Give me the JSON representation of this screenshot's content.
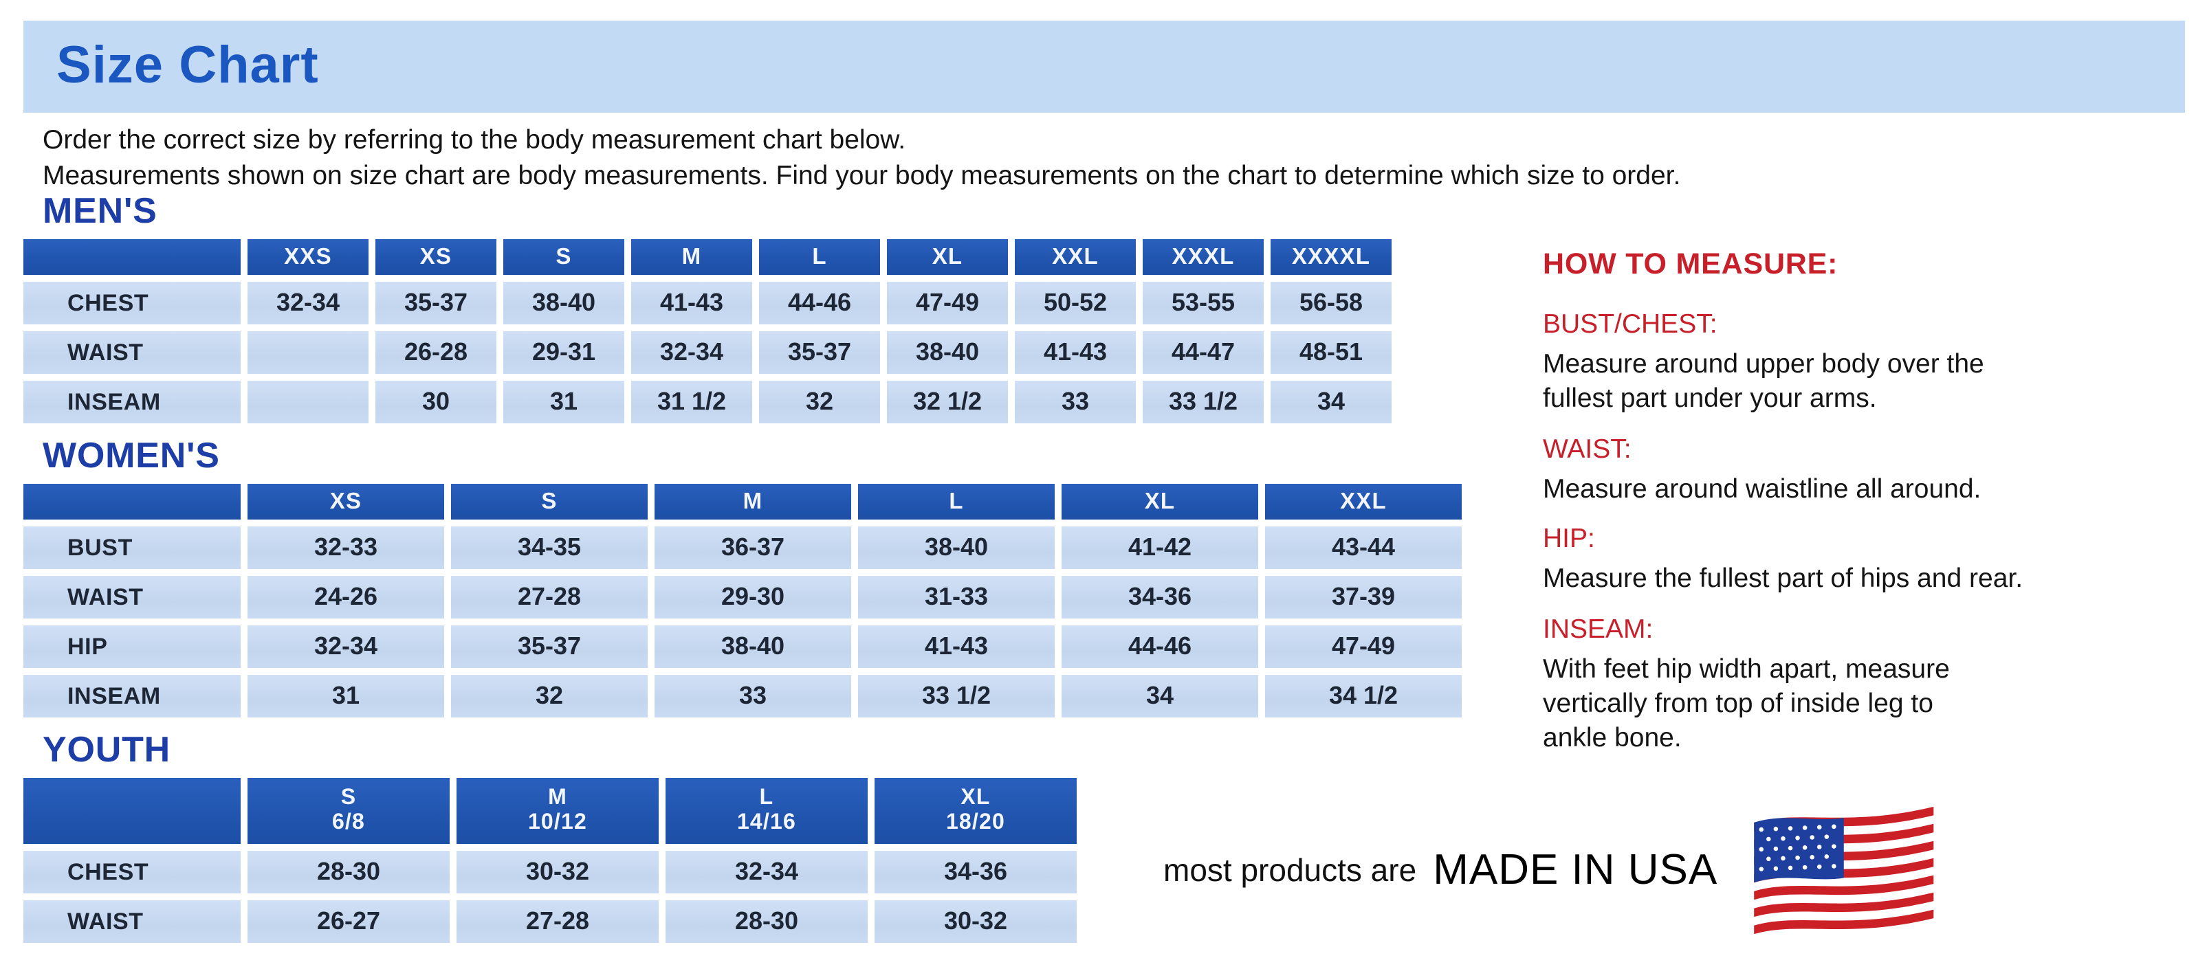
{
  "page_title": "Size Chart",
  "intro_lines": [
    "Order the correct size by referring to the body measurement chart below.",
    "Measurements shown on size chart are body measurements.  Find your body measurements on the chart to determine which size to order."
  ],
  "tables": [
    {
      "id": "mens",
      "section_label": "MEN'S",
      "columns": [
        {
          "size": "XXS"
        },
        {
          "size": "XS"
        },
        {
          "size": "S"
        },
        {
          "size": "M"
        },
        {
          "size": "L"
        },
        {
          "size": "XL"
        },
        {
          "size": "XXL"
        },
        {
          "size": "XXXL"
        },
        {
          "size": "XXXXL"
        }
      ],
      "rows": [
        {
          "label": "CHEST",
          "values": [
            "32-34",
            "35-37",
            "38-40",
            "41-43",
            "44-46",
            "47-49",
            "50-52",
            "53-55",
            "56-58"
          ]
        },
        {
          "label": "WAIST",
          "values": [
            "",
            "26-28",
            "29-31",
            "32-34",
            "35-37",
            "38-40",
            "41-43",
            "44-47",
            "48-51"
          ]
        },
        {
          "label": "INSEAM",
          "values": [
            "",
            "30",
            "31",
            "31 1/2",
            "32",
            "32 1/2",
            "33",
            "33 1/2",
            "34"
          ]
        }
      ]
    },
    {
      "id": "womens",
      "section_label": "WOMEN'S",
      "columns": [
        {
          "size": "XS"
        },
        {
          "size": "S"
        },
        {
          "size": "M"
        },
        {
          "size": "L"
        },
        {
          "size": "XL"
        },
        {
          "size": "XXL"
        }
      ],
      "rows": [
        {
          "label": "BUST",
          "values": [
            "32-33",
            "34-35",
            "36-37",
            "38-40",
            "41-42",
            "43-44"
          ]
        },
        {
          "label": "WAIST",
          "values": [
            "24-26",
            "27-28",
            "29-30",
            "31-33",
            "34-36",
            "37-39"
          ]
        },
        {
          "label": "HIP",
          "values": [
            "32-34",
            "35-37",
            "38-40",
            "41-43",
            "44-46",
            "47-49"
          ]
        },
        {
          "label": "INSEAM",
          "values": [
            "31",
            "32",
            "33",
            "33 1/2",
            "34",
            "34 1/2"
          ]
        }
      ]
    },
    {
      "id": "youth",
      "section_label": "YOUTH",
      "columns": [
        {
          "size": "S",
          "range": "6/8"
        },
        {
          "size": "M",
          "range": "10/12"
        },
        {
          "size": "L",
          "range": "14/16"
        },
        {
          "size": "XL",
          "range": "18/20"
        }
      ],
      "rows": [
        {
          "label": "CHEST",
          "values": [
            "28-30",
            "30-32",
            "32-34",
            "34-36"
          ]
        },
        {
          "label": "WAIST",
          "values": [
            "26-27",
            "27-28",
            "28-30",
            "30-32"
          ]
        }
      ]
    }
  ],
  "how_to_measure": {
    "title": "HOW TO MEASURE:",
    "items": [
      {
        "label": "BUST/CHEST:",
        "lines": [
          "Measure around upper body over the",
          "fullest part under your arms."
        ]
      },
      {
        "label": "WAIST:",
        "lines": [
          "Measure around waistline all around."
        ]
      },
      {
        "label": "HIP:",
        "lines": [
          "Measure the fullest part of hips and rear."
        ]
      },
      {
        "label": "INSEAM:",
        "lines": [
          "With feet hip width apart, measure",
          "vertically from top of inside leg to",
          "ankle bone."
        ]
      }
    ]
  },
  "footer": {
    "prefix": "most products are",
    "emphasis": "MADE IN USA",
    "flag_icon": "us-flag-icon"
  },
  "colors": {
    "banner_bg": "#c3daf4",
    "title_blue": "#1b57c0",
    "section_blue": "#1c3ea6",
    "header_blue": "#2054ae",
    "cell_blue": "#c6d9f1",
    "value_navy": "#1d2635",
    "accent_red": "#c7202a",
    "flag_red": "#cc2027",
    "flag_blue": "#1f3f9e"
  }
}
